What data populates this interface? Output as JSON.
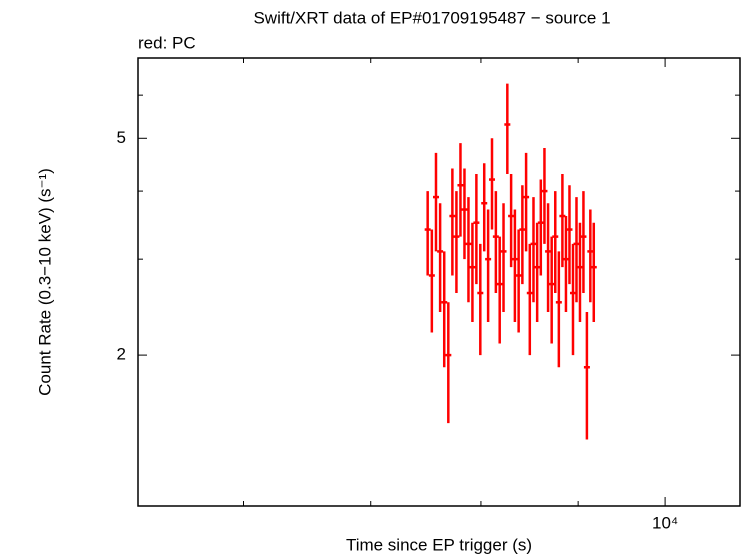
{
  "chart_data": {
    "type": "scatter",
    "title": "Swift/XRT data of EP#01709195487 − source 1",
    "subtitle": "red: PC",
    "x_label": "Time since EP trigger (s)",
    "y_label": "Count Rate (0.3−10 keV) (s⁻¹)",
    "x_log": true,
    "y_log": true,
    "color": "#ff0000",
    "xlim": [
      5280,
      10950
    ],
    "ylim": [
      1.057,
      7.02
    ],
    "xticks": [
      {
        "value": 10000,
        "label": "10⁴"
      }
    ],
    "xminor": [
      6000,
      7000,
      8000,
      9000
    ],
    "yticks": [
      2,
      5
    ],
    "yminor": [
      3,
      4,
      6
    ],
    "x": [
      7500,
      7538,
      7576,
      7614,
      7652,
      7690,
      7728,
      7766,
      7804,
      7842,
      7880,
      7918,
      7956,
      7994,
      8032,
      8070,
      8108,
      8146,
      8184,
      8222,
      8260,
      8298,
      8336,
      8374,
      8412,
      8450,
      8488,
      8526,
      8564,
      8602,
      8640,
      8678,
      8716,
      8754,
      8792,
      8830,
      8868,
      8906,
      8944,
      8982,
      9020,
      9058,
      9096,
      9134,
      9172
    ],
    "y": [
      3.4,
      2.8,
      3.9,
      3.1,
      2.5,
      2.0,
      3.6,
      3.3,
      4.1,
      3.7,
      3.2,
      2.9,
      3.5,
      2.6,
      3.8,
      3.0,
      4.2,
      3.3,
      2.7,
      3.1,
      5.3,
      3.6,
      3.0,
      2.8,
      3.4,
      3.9,
      2.6,
      3.2,
      2.9,
      3.5,
      4.0,
      3.1,
      2.7,
      3.3,
      2.5,
      3.6,
      3.0,
      3.4,
      2.6,
      3.2,
      2.9,
      3.3,
      1.9,
      3.1,
      2.9
    ],
    "yerr": [
      0.6,
      0.6,
      0.8,
      0.7,
      0.6,
      0.5,
      0.8,
      0.7,
      0.8,
      0.7,
      0.7,
      0.6,
      0.8,
      0.6,
      0.7,
      0.7,
      0.8,
      0.7,
      0.6,
      0.7,
      1.0,
      0.7,
      0.7,
      0.6,
      0.7,
      0.8,
      0.6,
      0.7,
      0.6,
      0.7,
      0.8,
      0.7,
      0.6,
      0.7,
      0.6,
      0.7,
      0.6,
      0.7,
      0.6,
      0.7,
      0.6,
      0.7,
      0.5,
      0.6,
      0.6
    ]
  }
}
